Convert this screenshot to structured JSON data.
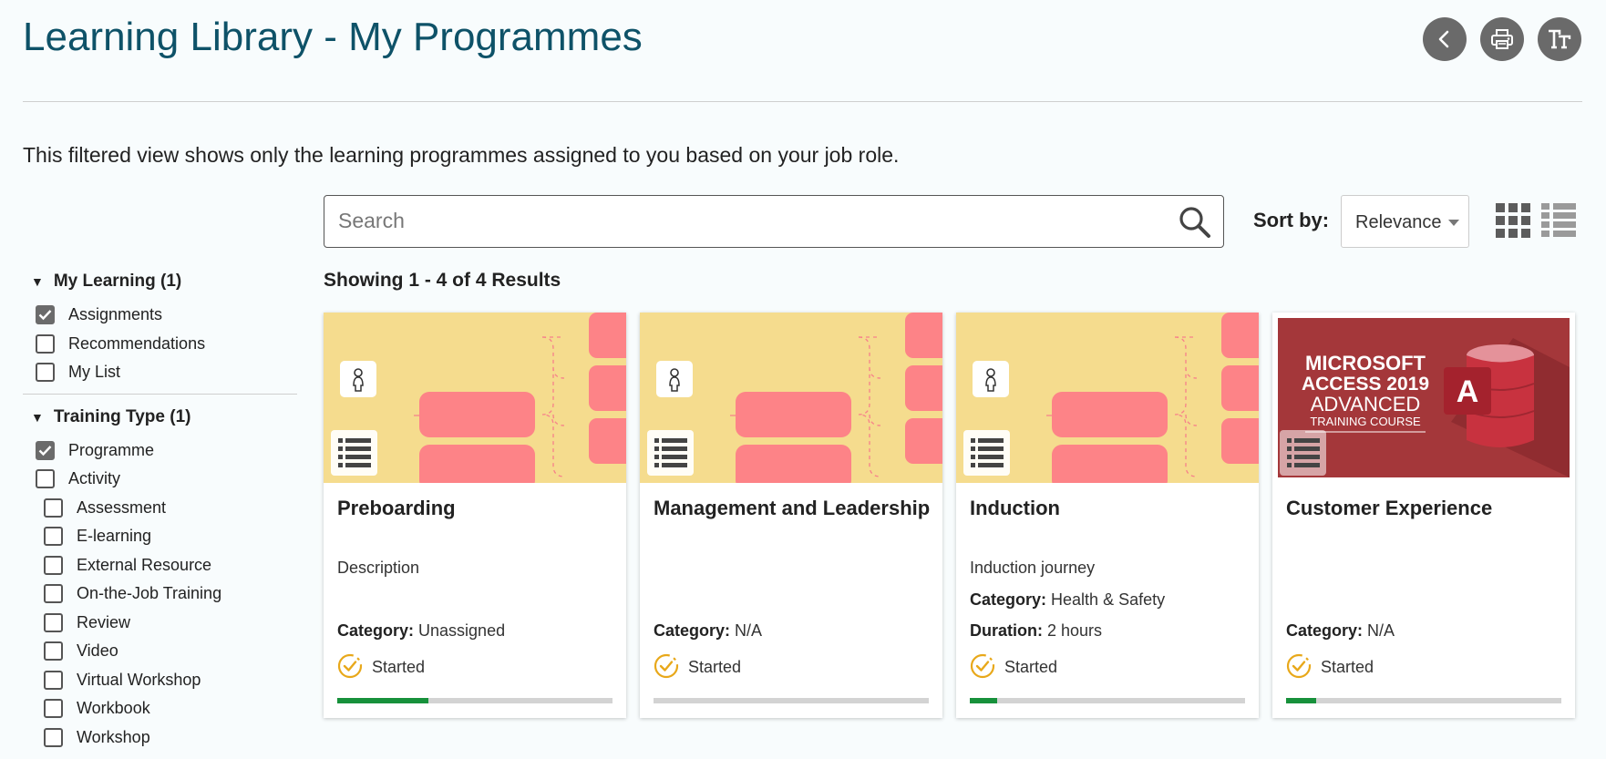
{
  "header": {
    "title": "Learning Library - My Programmes",
    "intro": "This filtered view shows only the learning programmes assigned to you based on your job role."
  },
  "toolbar": {
    "back_icon": "chevron-left-icon",
    "print_icon": "printer-icon",
    "text_size_icon": "text-size-icon",
    "button_color": "#6a6a6a"
  },
  "search": {
    "placeholder": "Search",
    "value": ""
  },
  "sort": {
    "label": "Sort by:",
    "selected": "Relevance"
  },
  "view": {
    "grid_icon": "grid-view-icon",
    "list_icon": "list-view-icon",
    "active": "grid"
  },
  "results_text": "Showing 1 - 4 of 4 Results",
  "filters": {
    "my_learning": {
      "title": "My Learning (1)",
      "options": [
        {
          "label": "Assignments",
          "checked": true
        },
        {
          "label": "Recommendations",
          "checked": false
        },
        {
          "label": "My List",
          "checked": false
        }
      ]
    },
    "training_type": {
      "title": "Training Type (1)",
      "options": [
        {
          "label": "Programme",
          "checked": true
        },
        {
          "label": "Activity",
          "checked": false
        }
      ],
      "sub_options": [
        {
          "label": "Assessment",
          "checked": false
        },
        {
          "label": "E-learning",
          "checked": false
        },
        {
          "label": "External Resource",
          "checked": false
        },
        {
          "label": "On-the-Job Training",
          "checked": false
        },
        {
          "label": "Review",
          "checked": false
        },
        {
          "label": "Video",
          "checked": false
        },
        {
          "label": "Virtual Workshop",
          "checked": false
        },
        {
          "label": "Workbook",
          "checked": false
        },
        {
          "label": "Workshop",
          "checked": false
        }
      ]
    }
  },
  "cards": [
    {
      "title": "Preboarding",
      "description": "Description",
      "category_label": "Category:",
      "category": "Unassigned",
      "status": "Started",
      "progress": 0.33
    },
    {
      "title": "Management and Leadership",
      "category_label": "Category:",
      "category": "N/A",
      "status": "Started",
      "progress": 0.0
    },
    {
      "title": "Induction",
      "description": "Induction journey",
      "category_label": "Category:",
      "category": "Health & Safety",
      "duration_label": "Duration:",
      "duration": "2 hours",
      "status": "Started",
      "progress": 0.1
    },
    {
      "title": "Customer Experience",
      "category_label": "Category:",
      "category": "N/A",
      "status": "Started",
      "progress": 0.11,
      "thumb_text": {
        "line1": "MICROSOFT",
        "line2": "ACCESS 2019",
        "line3": "ADVANCED",
        "line4": "TRAINING COURSE",
        "logo_letter": "A"
      }
    }
  ],
  "colors": {
    "title": "#0e5268",
    "thumb_bg": "#f5dc8e",
    "thumb_block": "#fd8387",
    "progress": "#17913b",
    "status_icon": "#e8a81a",
    "access_bg": "#a4373a"
  }
}
